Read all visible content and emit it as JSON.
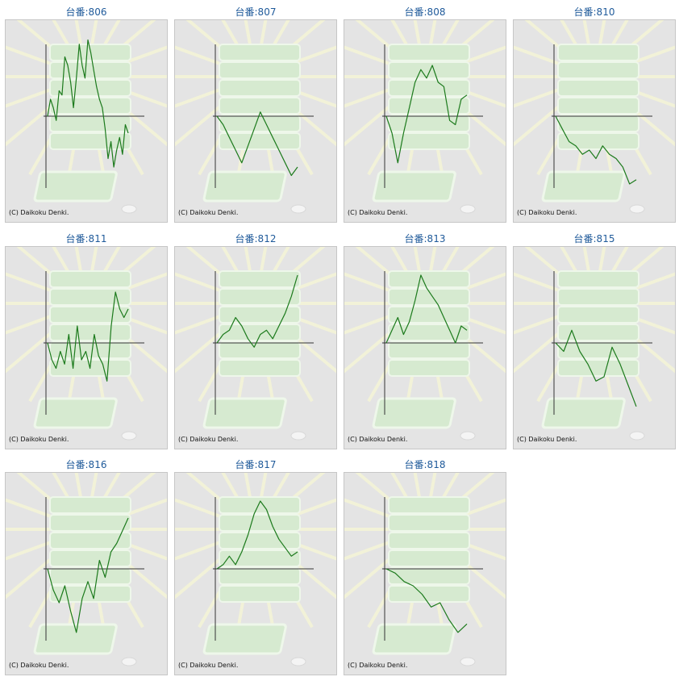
{
  "copyright": "(C) Daikoku Denki.",
  "colors": {
    "series": "#1c7a1c",
    "axis": "#333333",
    "title": "#1f5a9a",
    "panel": "#e4e4e4"
  },
  "chart_data": [
    {
      "type": "line",
      "title": "台番:806",
      "values": [
        0,
        20,
        10,
        -5,
        30,
        25,
        70,
        60,
        40,
        10,
        45,
        85,
        60,
        45,
        90,
        75,
        55,
        35,
        20,
        10,
        -15,
        -50,
        -30,
        -60,
        -40,
        -25,
        -45,
        -10,
        -20
      ]
    },
    {
      "type": "line",
      "title": "台番:807",
      "values": [
        0,
        -10,
        -25,
        -40,
        -55,
        -35,
        -15,
        5,
        -10,
        -25,
        -40,
        -55,
        -70,
        -60
      ]
    },
    {
      "type": "line",
      "title": "台番:808",
      "values": [
        0,
        -20,
        -55,
        -20,
        10,
        40,
        55,
        45,
        60,
        40,
        35,
        -5,
        -10,
        20,
        25
      ]
    },
    {
      "type": "line",
      "title": "台番:810",
      "values": [
        0,
        -15,
        -30,
        -35,
        -45,
        -40,
        -50,
        -35,
        -45,
        -50,
        -60,
        -80,
        -75
      ]
    },
    {
      "type": "line",
      "title": "台番:811",
      "values": [
        0,
        -20,
        -30,
        -10,
        -25,
        10,
        -30,
        20,
        -20,
        -10,
        -30,
        10,
        -15,
        -25,
        -45,
        20,
        60,
        40,
        30,
        40
      ]
    },
    {
      "type": "line",
      "title": "台番:812",
      "values": [
        0,
        10,
        15,
        30,
        20,
        5,
        -5,
        10,
        15,
        5,
        20,
        35,
        55,
        80
      ]
    },
    {
      "type": "line",
      "title": "台番:813",
      "values": [
        0,
        15,
        30,
        10,
        25,
        50,
        80,
        65,
        55,
        45,
        30,
        15,
        0,
        20,
        15
      ]
    },
    {
      "type": "line",
      "title": "台番:815",
      "values": [
        0,
        -10,
        15,
        -10,
        -25,
        -45,
        -40,
        -5,
        -25,
        -50,
        -75
      ]
    },
    {
      "type": "line",
      "title": "台番:816",
      "values": [
        0,
        -25,
        -40,
        -20,
        -50,
        -75,
        -35,
        -15,
        -35,
        10,
        -10,
        20,
        30,
        45,
        60
      ]
    },
    {
      "type": "line",
      "title": "台番:817",
      "values": [
        0,
        5,
        15,
        5,
        20,
        40,
        65,
        80,
        70,
        50,
        35,
        25,
        15,
        20
      ]
    },
    {
      "type": "line",
      "title": "台番:818",
      "values": [
        0,
        -5,
        -15,
        -20,
        -30,
        -45,
        -40,
        -60,
        -75,
        -65
      ]
    }
  ]
}
